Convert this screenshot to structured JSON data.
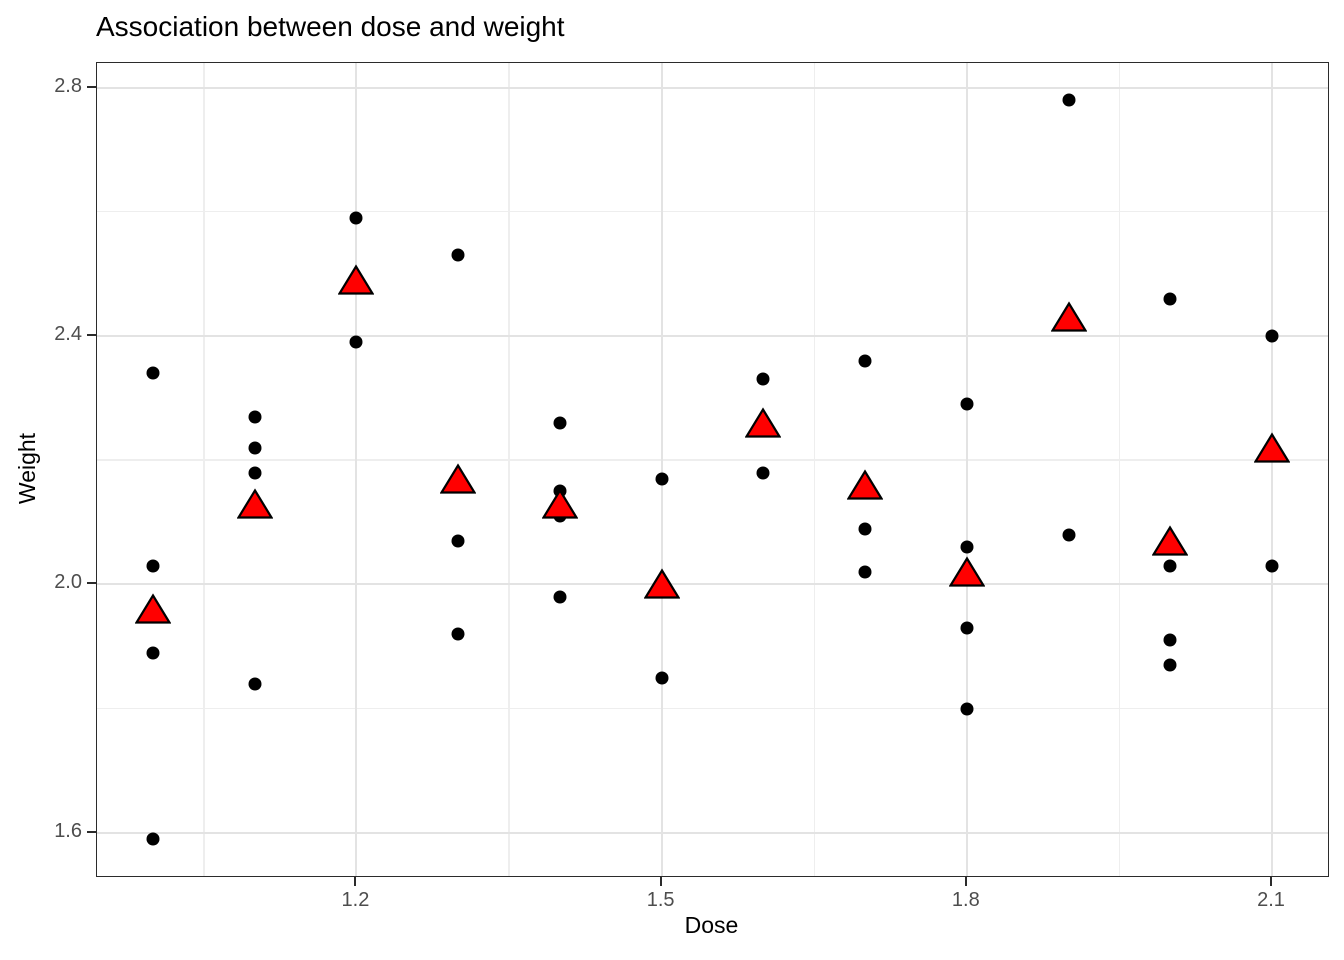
{
  "title": "Association between dose and weight",
  "axes": {
    "x_label": "Dose",
    "y_label": "Weight"
  },
  "colors": {
    "background": "#ffffff",
    "point_fill": "#000000",
    "mean_triangle_fill": "#ff0000",
    "mean_triangle_stroke": "#000000",
    "grid_major": "#e3e3e3",
    "grid_minor": "#eeeeee",
    "panel_border": "#2b2b2b",
    "tick_label_color": "#4d4d4d"
  },
  "chart_data": {
    "type": "scatter",
    "title": "Association between dose and weight",
    "xlabel": "Dose",
    "ylabel": "Weight",
    "xlim": [
      0.945,
      2.155
    ],
    "ylim": [
      1.5305,
      2.8395
    ],
    "grid": "on",
    "legend": "none",
    "x_ticks": [
      {
        "value": 1.2,
        "label": "1.2"
      },
      {
        "value": 1.5,
        "label": "1.5"
      },
      {
        "value": 1.8,
        "label": "1.8"
      },
      {
        "value": 2.1,
        "label": "2.1"
      }
    ],
    "y_ticks": [
      {
        "value": 2.8,
        "label": "2.8"
      },
      {
        "value": 2.4,
        "label": "2.4"
      },
      {
        "value": 2.0,
        "label": "2.0"
      },
      {
        "value": 1.6,
        "label": "1.6"
      }
    ],
    "x_minor_gridlines": [
      1.05,
      1.35,
      1.65,
      1.95
    ],
    "y_minor_gridlines": [
      1.8,
      2.2,
      2.6
    ],
    "series": [
      {
        "name": "weight-observations",
        "marker": "black-dot",
        "groups": [
          {
            "dose": 1.0,
            "weights": [
              2.34,
              2.03,
              1.89,
              1.59
            ]
          },
          {
            "dose": 1.1,
            "weights": [
              2.27,
              2.22,
              2.18,
              1.84
            ]
          },
          {
            "dose": 1.2,
            "weights": [
              2.59,
              2.39
            ]
          },
          {
            "dose": 1.3,
            "weights": [
              2.53,
              2.07,
              1.92
            ]
          },
          {
            "dose": 1.4,
            "weights": [
              2.26,
              2.15,
              2.11,
              1.98
            ]
          },
          {
            "dose": 1.5,
            "weights": [
              2.17,
              1.99,
              1.85
            ]
          },
          {
            "dose": 1.6,
            "weights": [
              2.33,
              2.18
            ]
          },
          {
            "dose": 1.7,
            "weights": [
              2.36,
              2.09,
              2.02
            ]
          },
          {
            "dose": 1.8,
            "weights": [
              2.29,
              2.06,
              1.93,
              1.8
            ]
          },
          {
            "dose": 1.9,
            "weights": [
              2.78,
              2.08
            ]
          },
          {
            "dose": 2.0,
            "weights": [
              2.46,
              2.03,
              1.91,
              1.87
            ]
          },
          {
            "dose": 2.1,
            "weights": [
              2.4,
              2.03
            ]
          }
        ]
      },
      {
        "name": "group-means",
        "marker": "red-triangle",
        "groups": [
          {
            "dose": 1.0,
            "mean": 1.96
          },
          {
            "dose": 1.1,
            "mean": 2.13
          },
          {
            "dose": 1.2,
            "mean": 2.49
          },
          {
            "dose": 1.3,
            "mean": 2.17
          },
          {
            "dose": 1.4,
            "mean": 2.13
          },
          {
            "dose": 1.5,
            "mean": 2.0
          },
          {
            "dose": 1.6,
            "mean": 2.26
          },
          {
            "dose": 1.7,
            "mean": 2.16
          },
          {
            "dose": 1.8,
            "mean": 2.02
          },
          {
            "dose": 1.9,
            "mean": 2.43
          },
          {
            "dose": 2.0,
            "mean": 2.07
          },
          {
            "dose": 2.1,
            "mean": 2.22
          }
        ]
      }
    ]
  }
}
